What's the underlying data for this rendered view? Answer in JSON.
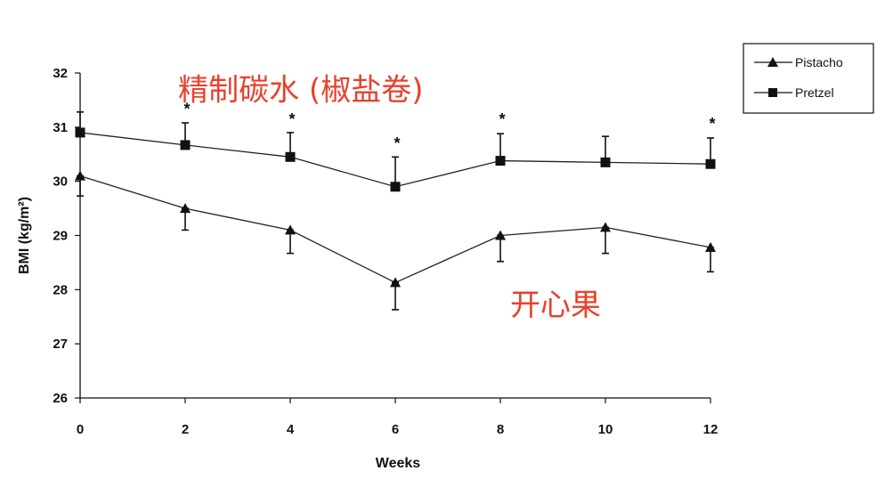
{
  "chart_data": {
    "type": "line",
    "title": "",
    "xlabel": "Weeks",
    "ylabel": "BMI (kg/m²)",
    "x": [
      0,
      2,
      4,
      6,
      8,
      10,
      12
    ],
    "xlim": [
      0,
      12
    ],
    "ylim": [
      26,
      32
    ],
    "yticks": [
      26,
      27,
      28,
      29,
      30,
      31,
      32
    ],
    "xticks": [
      0,
      2,
      4,
      6,
      8,
      10,
      12
    ],
    "series": [
      {
        "name": "Pistacho",
        "marker": "triangle",
        "values": [
          30.1,
          29.5,
          29.1,
          28.13,
          29.0,
          29.15,
          28.78
        ],
        "error_upper": [
          30.1,
          29.5,
          29.1,
          28.13,
          29.0,
          29.15,
          28.78
        ],
        "error_lower": [
          29.73,
          29.1,
          28.67,
          27.63,
          28.52,
          28.67,
          28.33
        ]
      },
      {
        "name": "Pretzel",
        "marker": "square",
        "values": [
          30.9,
          30.67,
          30.45,
          29.9,
          30.38,
          30.35,
          30.32
        ],
        "error_upper": [
          31.28,
          31.08,
          30.9,
          30.45,
          30.88,
          30.83,
          30.8
        ],
        "error_lower": [
          30.9,
          30.67,
          30.45,
          29.9,
          30.38,
          30.35,
          30.32
        ]
      }
    ],
    "significance": [
      {
        "x": 2,
        "y": 31.35,
        "label": "*"
      },
      {
        "x": 4,
        "y": 31.16,
        "label": "*"
      },
      {
        "x": 6,
        "y": 30.72,
        "label": "*"
      },
      {
        "x": 8,
        "y": 31.16,
        "label": "*"
      },
      {
        "x": 12,
        "y": 31.08,
        "label": "*"
      }
    ],
    "annotations": [
      {
        "text": "精制碳水 (椒盐卷)",
        "anchor_x": 4.2,
        "anchor_y": 31.7,
        "color": "#e8412c"
      },
      {
        "text": "开心果",
        "anchor_x": 9.05,
        "anchor_y": 27.73,
        "color": "#e8412c"
      }
    ],
    "grid": false,
    "legend": "top-right"
  }
}
